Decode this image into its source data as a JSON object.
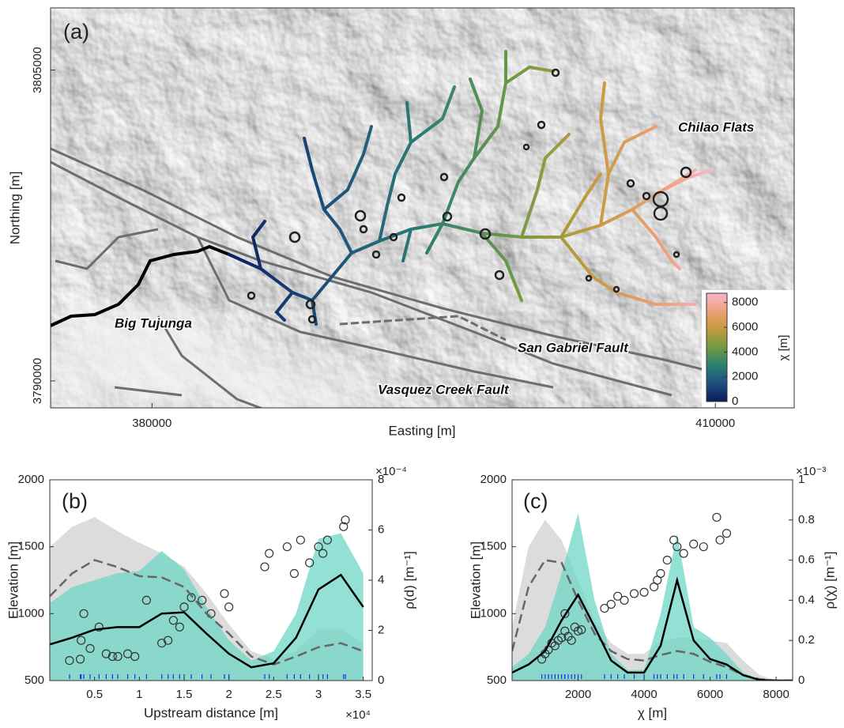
{
  "chart_data": [
    {
      "type": "map",
      "panel_label": "(a)",
      "xlabel": "Easting [m]",
      "ylabel": "Northing [m]",
      "xlim": [
        374600,
        414200
      ],
      "ylim": [
        3788700,
        3808000
      ],
      "xticks": [
        380000,
        410000
      ],
      "yticks": [
        3790000,
        3805000
      ],
      "annotations": [
        "Chilao Flats",
        "Big Tujunga",
        "San Gabriel Fault",
        "Vasquez Creek Fault"
      ],
      "colorbar": {
        "label": "χ [m]",
        "lim": [
          0,
          8750
        ],
        "ticks": [
          0,
          2000,
          4000,
          6000,
          8000
        ],
        "colors": [
          "#0b1a5c",
          "#1d4f7c",
          "#2c7f73",
          "#6f9a43",
          "#c39a3c",
          "#eea077",
          "#f7b6cf"
        ]
      }
    },
    {
      "type": "line",
      "panel_label": "(b)",
      "xlabel": "Upstream distance [m]",
      "ylabel": "Elevation [m]",
      "y2label": "ρ(d) [m⁻¹]",
      "x_multiplier": "×10⁴",
      "y2_multiplier": "×10⁻⁴",
      "xlim": [
        0,
        36000
      ],
      "ylim": [
        500,
        2000
      ],
      "y2lim": [
        0,
        0.0008
      ],
      "xticks": [
        {
          "value": 5000,
          "label": "0.5"
        },
        {
          "value": 10000,
          "label": "1"
        },
        {
          "value": 15000,
          "label": "1.5"
        },
        {
          "value": 20000,
          "label": "2"
        },
        {
          "value": 25000,
          "label": "2.5"
        },
        {
          "value": 30000,
          "label": "3"
        },
        {
          "value": 35000,
          "label": "3.5"
        }
      ],
      "yticks": [
        500,
        1000,
        1500,
        2000
      ],
      "y2ticks": [
        0,
        {
          "value": 0.0002,
          "label": "2"
        },
        {
          "value": 0.0004,
          "label": "4"
        },
        {
          "value": 0.0006,
          "label": "6"
        },
        {
          "value": 0.0008,
          "label": "8"
        }
      ],
      "x": [
        0,
        2500,
        5000,
        7500,
        10000,
        12500,
        15000,
        17500,
        20000,
        22500,
        25000,
        27500,
        30000,
        32500,
        35000
      ],
      "series": [
        {
          "style": "area",
          "color": "#dcdcdc",
          "axis": "y2",
          "values": [
            0.000533,
            0.000613,
            0.000651,
            0.000597,
            0.000549,
            0.000507,
            0.000453,
            0.000347,
            0.000224,
            0.000117,
            8.5e-05,
            0.000117,
            0.000203,
            0.000203,
            0.000149
          ]
        },
        {
          "style": "area",
          "color": "#6fd6c6",
          "axis": "y2",
          "values": [
            0.000309,
            0.000373,
            0.0004,
            0.000427,
            0.000437,
            0.000517,
            0.000443,
            0.000293,
            0.00016,
            8e-05,
            0.000117,
            0.000267,
            0.000565,
            0.000587,
            0.000427
          ]
        },
        {
          "style": "dashed",
          "color": "#666666",
          "axis": "y2",
          "values": [
            0.000336,
            0.000427,
            0.00048,
            0.000453,
            0.000416,
            0.000411,
            0.000373,
            0.000267,
            0.000187,
            9.6e-05,
            6.4e-05,
            9.6e-05,
            0.000133,
            0.000149,
            0.000117
          ]
        },
        {
          "style": "solid",
          "color": "#000000",
          "axis": "y2",
          "values": [
            0.000144,
            0.000171,
            0.000203,
            0.000213,
            0.000213,
            0.000267,
            0.000272,
            0.000187,
            0.000107,
            5.3e-05,
            6.9e-05,
            0.000171,
            0.000363,
            0.000421,
            0.000293
          ]
        }
      ],
      "points": {
        "color": "#333333",
        "rug_color": "#1f2fe0",
        "x": [
          2200,
          3400,
          3500,
          3800,
          4500,
          5500,
          6300,
          7000,
          7600,
          8700,
          9500,
          10800,
          12500,
          13200,
          13800,
          14500,
          15000,
          15800,
          17000,
          18000,
          19500,
          20000,
          24000,
          24500,
          26500,
          27300,
          28000,
          29000,
          30000,
          30500,
          31000,
          32800,
          33000
        ],
        "y": [
          650,
          660,
          800,
          1000,
          740,
          900,
          700,
          680,
          680,
          700,
          680,
          1100,
          780,
          800,
          950,
          900,
          1050,
          1120,
          1100,
          1000,
          1150,
          1050,
          1350,
          1450,
          1500,
          1300,
          1550,
          1380,
          1500,
          1450,
          1550,
          1650,
          1700
        ]
      }
    },
    {
      "type": "line",
      "panel_label": "(c)",
      "xlabel": "χ [m]",
      "ylabel": "Elevation [m]",
      "y2label": "ρ(χ) [m⁻¹]",
      "y2_multiplier": "×10⁻³",
      "xlim": [
        0,
        8500
      ],
      "ylim": [
        500,
        2000
      ],
      "y2lim": [
        0,
        0.001
      ],
      "xticks": [
        2000,
        4000,
        6000,
        8000
      ],
      "yticks": [
        500,
        1000,
        1500,
        2000
      ],
      "y2ticks": [
        0,
        {
          "value": 0.0002,
          "label": "0.2"
        },
        {
          "value": 0.0004,
          "label": "0.4"
        },
        {
          "value": 0.0006,
          "label": "0.6"
        },
        {
          "value": 0.0008,
          "label": "0.8"
        },
        {
          "value": 0.001,
          "label": "1"
        }
      ],
      "x": [
        0,
        500,
        1000,
        1500,
        2000,
        2500,
        3000,
        3500,
        4000,
        4500,
        5000,
        5500,
        6000,
        6500,
        7000,
        7500,
        8000,
        8500
      ],
      "series": [
        {
          "style": "area",
          "color": "#dcdcdc",
          "axis": "y2",
          "values": [
            0.000267,
            0.000667,
            0.0008,
            0.0007,
            0.0005,
            0.0003,
            0.000187,
            0.000133,
            0.000133,
            0.0002,
            0.000213,
            0.000213,
            0.0002,
            0.000187,
            0.0001,
            2.7e-05,
            0,
            0
          ]
        },
        {
          "style": "area",
          "color": "#6fd6c6",
          "axis": "y2",
          "values": [
            6.7e-05,
            0.000133,
            0.000267,
            0.000533,
            0.000833,
            0.0004,
            0.000133,
            5.3e-05,
            5.3e-05,
            0.000333,
            0.000733,
            0.000267,
            0.000213,
            0.000133,
            4e-05,
            7e-06,
            0,
            0
          ]
        },
        {
          "style": "dashed",
          "color": "#666666",
          "axis": "y2",
          "values": [
            0.000147,
            0.000467,
            0.0006,
            0.000587,
            0.0004,
            0.000233,
            0.000147,
            0.000107,
            0.0001,
            0.000127,
            0.000147,
            0.000133,
            9.3e-05,
            6.7e-05,
            2.7e-05,
            7e-06,
            0,
            0
          ]
        },
        {
          "style": "solid",
          "color": "#000000",
          "axis": "y2",
          "values": [
            4e-05,
            8e-05,
            0.000147,
            0.0003,
            0.000427,
            0.000267,
            0.0001,
            4e-05,
            4e-05,
            0.000173,
            0.0005,
            0.0002,
            0.000107,
            8e-05,
            2.7e-05,
            3e-06,
            0,
            0
          ]
        }
      ],
      "points": {
        "color": "#333333",
        "rug_color": "#1f2fe0",
        "x": [
          900,
          1000,
          1100,
          1200,
          1300,
          1400,
          1500,
          1600,
          1700,
          1800,
          1900,
          2000,
          2100,
          1600,
          2800,
          3000,
          3200,
          3400,
          3700,
          4000,
          4300,
          4400,
          4500,
          4700,
          4900,
          5000,
          5200,
          5500,
          5800,
          6200,
          6300,
          6500
        ],
        "y": [
          660,
          700,
          730,
          780,
          760,
          800,
          820,
          870,
          830,
          800,
          900,
          870,
          880,
          1000,
          1040,
          1070,
          1130,
          1100,
          1150,
          1160,
          1200,
          1250,
          1300,
          1400,
          1550,
          1500,
          1450,
          1520,
          1500,
          1720,
          1550,
          1600
        ]
      }
    }
  ]
}
